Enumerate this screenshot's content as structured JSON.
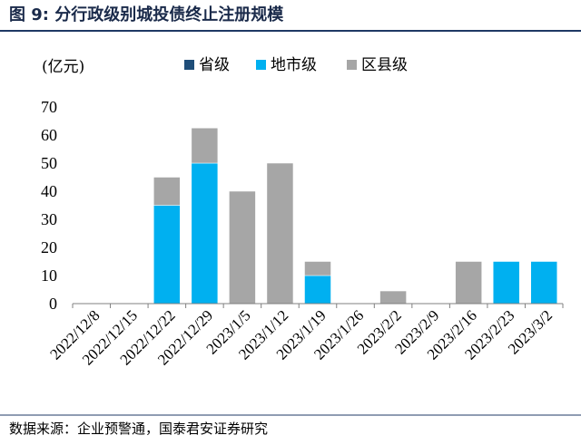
{
  "figure": {
    "title": "图 9:  分行政级别城投债终止注册规模",
    "source": "数据来源：企业预警通，国泰君安证券研究"
  },
  "colors": {
    "title_line": "#1f3864",
    "省级": "#1f4e79",
    "地市级": "#00b0f0",
    "区县级": "#a6a6a6",
    "axis": "#808080"
  },
  "chart_data": {
    "type": "bar",
    "stacked": true,
    "ylabel": "(亿元)",
    "ylim": [
      0,
      70
    ],
    "yticks": [
      0,
      10,
      20,
      30,
      40,
      50,
      60,
      70
    ],
    "legend_position": "top",
    "grid": false,
    "categories": [
      "2022/12/8",
      "2022/12/15",
      "2022/12/22",
      "2022/12/29",
      "2023/1/5",
      "2023/1/12",
      "2023/1/19",
      "2023/1/26",
      "2023/2/2",
      "2023/2/9",
      "2023/2/16",
      "2023/2/23",
      "2023/3/2"
    ],
    "series": [
      {
        "name": "省级",
        "values": [
          0,
          0,
          0,
          0,
          0,
          0,
          0,
          0,
          0,
          0,
          0,
          0,
          0
        ]
      },
      {
        "name": "地市级",
        "values": [
          0,
          0,
          35,
          50,
          0,
          0,
          10,
          0,
          0,
          0,
          0,
          15,
          15
        ]
      },
      {
        "name": "区县级",
        "values": [
          0,
          0,
          10,
          12.5,
          40,
          50,
          5,
          0,
          4.5,
          0,
          15,
          0,
          0
        ]
      }
    ]
  }
}
